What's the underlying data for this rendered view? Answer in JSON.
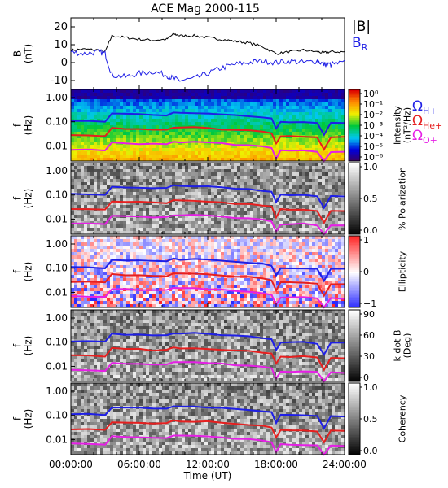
{
  "title": "ACE Mag 2000-115",
  "chart_data": [
    {
      "type": "line",
      "panel": "magnetic-field",
      "ylabel": "B\n(nT)",
      "ylim": [
        -15,
        25
      ],
      "yticks": [
        -10,
        0,
        10,
        20
      ],
      "x": [
        0,
        1.2,
        2.4,
        3.0,
        3.6,
        4.8,
        6.0,
        7.2,
        8.4,
        9.0,
        9.6,
        10.8,
        12.0,
        13.2,
        14.4,
        15.6,
        16.8,
        18.0,
        19.2,
        20.4,
        21.6,
        22.2,
        22.8,
        24.0
      ],
      "series": [
        {
          "name": "|B|",
          "color": "#000000",
          "values": [
            7,
            7.5,
            7,
            6,
            15,
            14,
            13,
            12.5,
            13,
            16,
            15,
            15,
            14,
            13,
            12,
            11,
            9,
            5,
            6,
            7,
            6,
            5.5,
            6,
            6
          ]
        },
        {
          "name": "B",
          "subscript": "R",
          "color": "#1f1fe6",
          "values": [
            6,
            5,
            6,
            5,
            -7,
            -8,
            -6,
            -5,
            -7,
            -9,
            -10,
            -9,
            -6,
            -3,
            -1,
            0,
            1,
            0,
            1,
            0,
            1,
            -1,
            -1,
            0
          ]
        }
      ]
    },
    {
      "type": "heatmap",
      "panel": "spectral-intensity",
      "ylabel": "f\n(Hz)",
      "yticks": [
        "1.00",
        "0.10",
        "0.01"
      ],
      "colorbar_label": "Intensity\n(nT²/Hz)",
      "colorbar_ticks": [
        "10⁰",
        "10⁻¹",
        "10⁻²",
        "10⁻³",
        "10⁻⁴",
        "10⁻⁵",
        "10⁻⁶"
      ],
      "colormap": "rainbow"
    },
    {
      "type": "heatmap",
      "panel": "polarization",
      "ylabel": "f\n(Hz)",
      "yticks": [
        "1.00",
        "0.10",
        "0.01"
      ],
      "colorbar_label": "% Polarization",
      "colorbar_ticks": [
        "1.0",
        "0.5",
        "0.0"
      ],
      "colormap": "gray"
    },
    {
      "type": "heatmap",
      "panel": "ellipticity",
      "ylabel": "f\n(Hz)",
      "yticks": [
        "1.00",
        "0.10",
        "0.01"
      ],
      "colorbar_label": "Ellipticity",
      "colorbar_ticks": [
        "1",
        "0",
        "−1"
      ],
      "colormap": "blue-white-red"
    },
    {
      "type": "heatmap",
      "panel": "wave-normal-angle",
      "ylabel": "f\n(Hz)",
      "yticks": [
        "1.00",
        "0.10",
        "0.01"
      ],
      "colorbar_label": "k dot B\n(Deg)",
      "colorbar_ticks": [
        "90",
        "60",
        "30",
        "0"
      ],
      "colormap": "gray"
    },
    {
      "type": "heatmap",
      "panel": "coherency",
      "ylabel": "f\n(Hz)",
      "yticks": [
        "1.00",
        "0.10",
        "0.01"
      ],
      "colorbar_label": "Coherency",
      "colorbar_ticks": [
        "1.0",
        "0.5",
        "0.0"
      ],
      "colormap": "gray",
      "xlabel": "Time (UT)",
      "xticks": [
        "00:00:00",
        "06:00:00",
        "12:00:00",
        "18:00:00",
        "24:00:00"
      ]
    }
  ],
  "gyrofrequencies": {
    "x_hours": [
      0,
      1.5,
      3.0,
      3.6,
      4.8,
      6.0,
      7.2,
      8.4,
      9.0,
      9.6,
      10.8,
      12.0,
      13.2,
      14.4,
      15.6,
      16.8,
      17.6,
      18.0,
      18.4,
      19.2,
      20.4,
      21.6,
      22.2,
      22.8,
      24.0
    ],
    "proton_hz": [
      0.11,
      0.11,
      0.1,
      0.22,
      0.21,
      0.2,
      0.19,
      0.19,
      0.24,
      0.23,
      0.23,
      0.22,
      0.2,
      0.18,
      0.17,
      0.15,
      0.13,
      0.05,
      0.1,
      0.1,
      0.1,
      0.09,
      0.03,
      0.09,
      0.09
    ],
    "lines": [
      {
        "symbol": "Ω",
        "subscript": "H+",
        "color": "#1f1fe6",
        "factor": 1
      },
      {
        "symbol": "Ω",
        "subscript": "He+",
        "color": "#e61f1f",
        "factor": 0.25
      },
      {
        "symbol": "Ω",
        "subscript": "O+",
        "color": "#e61fe6",
        "factor": 0.0625
      }
    ]
  },
  "colors": {
    "magnitude": "#000000",
    "radial": "#1f1fe6",
    "proton": "#1f1fe6",
    "helium": "#e61f1f",
    "oxygen": "#e61fe6"
  }
}
